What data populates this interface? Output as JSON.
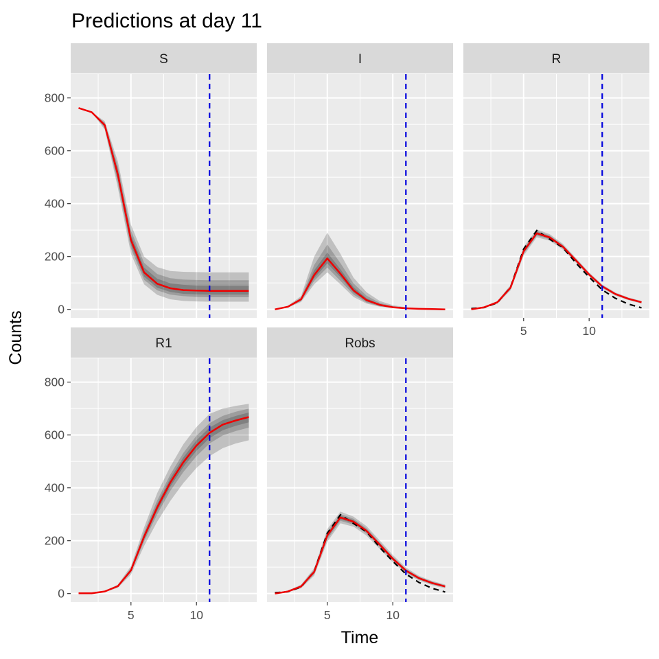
{
  "chart_data": {
    "type": "line",
    "title": "Predictions at day 11",
    "xlabel": "Time",
    "ylabel": "Counts",
    "xlim": [
      0.4,
      14.6
    ],
    "ylim": [
      -32,
      890
    ],
    "x_ticks": [
      5,
      10
    ],
    "y_ticks": [
      0,
      200,
      400,
      600,
      800
    ],
    "vline_x": 11,
    "colors": {
      "panel_bg": "#ebebeb",
      "strip_bg": "#d9d9d9",
      "grid": "#ffffff",
      "median": "#ee0000",
      "observed": "#000000",
      "vline": "#0000dd",
      "band": "#000000"
    },
    "x": [
      1,
      2,
      3,
      4,
      5,
      6,
      7,
      8,
      9,
      10,
      11,
      12,
      13,
      14
    ],
    "panels": [
      {
        "name": "S",
        "median": [
          762,
          746,
          697,
          510,
          262,
          140,
          97,
          80,
          73,
          71,
          70,
          70,
          70,
          70
        ],
        "bands": [
          {
            "lower": [
              762,
              746,
              680,
              460,
              210,
              95,
              55,
              38,
              32,
              30,
              29,
              29,
              29,
              29
            ],
            "upper": [
              762,
              746,
              712,
              560,
              320,
              200,
              160,
              145,
              142,
              141,
              140,
              140,
              140,
              140
            ]
          },
          {
            "lower": [
              762,
              746,
              687,
              478,
              230,
              112,
              72,
              56,
              50,
              47,
              46,
              46,
              46,
              46
            ],
            "upper": [
              762,
              746,
              706,
              542,
              298,
              176,
              134,
              118,
              113,
              111,
              110,
              110,
              110,
              110
            ]
          },
          {
            "lower": [
              762,
              746,
              691,
              492,
              244,
              124,
              82,
              66,
              59,
              57,
              56,
              56,
              56,
              56
            ],
            "upper": [
              762,
              746,
              702,
              528,
              282,
              158,
              116,
              99,
              93,
              90,
              89,
              89,
              89,
              89
            ]
          }
        ],
        "observed": null
      },
      {
        "name": "I",
        "median": [
          0,
          10,
          38,
          130,
          193,
          135,
          72,
          35,
          17,
          8,
          4,
          2,
          1,
          0
        ],
        "bands": [
          {
            "lower": [
              0,
              7,
              28,
              95,
              140,
              95,
              47,
              22,
              10,
              5,
              2,
              1,
              0,
              0
            ],
            "upper": [
              0,
              14,
              50,
              200,
              290,
              210,
              120,
              65,
              32,
              16,
              8,
              4,
              2,
              1
            ]
          },
          {
            "lower": [
              0,
              8,
              32,
              108,
              158,
              108,
              56,
              26,
              12,
              6,
              3,
              1,
              0,
              0
            ],
            "upper": [
              0,
              12,
              44,
              168,
              245,
              175,
              98,
              52,
              25,
              12,
              6,
              3,
              1,
              1
            ]
          },
          {
            "lower": [
              0,
              9,
              35,
              118,
              174,
              122,
              64,
              30,
              14,
              7,
              3,
              2,
              1,
              0
            ],
            "upper": [
              0,
              11,
              41,
              148,
              215,
              152,
              84,
              42,
              20,
              10,
              5,
              2,
              1,
              0
            ]
          }
        ],
        "observed": null
      },
      {
        "name": "R",
        "median": [
          0,
          8,
          27,
          82,
          220,
          288,
          272,
          237,
          185,
          132,
          87,
          58,
          40,
          27
        ],
        "bands": [
          {
            "lower": [
              0,
              6,
              22,
              72,
              203,
              273,
              260,
              226,
              176,
              124,
              80,
              52,
              35,
              22
            ],
            "upper": [
              0,
              10,
              32,
              92,
              237,
              303,
              284,
              248,
              194,
              140,
              94,
              64,
              45,
              32
            ]
          },
          {
            "lower": [
              0,
              7,
              24,
              76,
              210,
              279,
              265,
              231,
              180,
              128,
              83,
              55,
              37,
              24
            ],
            "upper": [
              0,
              9,
              30,
              88,
              230,
              297,
              279,
              243,
              190,
              136,
              91,
              61,
              43,
              30
            ]
          },
          {
            "lower": [
              0,
              7,
              25,
              79,
              215,
              283,
              268,
              234,
              182,
              130,
              85,
              56,
              38,
              25
            ],
            "upper": [
              0,
              9,
              29,
              85,
              225,
              293,
              276,
              240,
              188,
              134,
              89,
              60,
              42,
              29
            ]
          }
        ],
        "observed": [
          3,
          7,
          25,
          84,
          228,
          298,
          265,
          234,
          175,
          122,
          74,
          42,
          20,
          6
        ]
      },
      {
        "name": "R1",
        "median": [
          1,
          1,
          8,
          28,
          88,
          215,
          326,
          420,
          497,
          560,
          608,
          639,
          655,
          668
        ],
        "bands": [
          {
            "lower": [
              1,
              1,
              6,
              22,
              72,
              180,
              272,
              350,
              418,
              475,
              520,
              550,
              568,
              580
            ],
            "upper": [
              1,
              1,
              10,
              34,
              104,
              250,
              380,
              480,
              565,
              630,
              680,
              700,
              710,
              718
            ]
          },
          {
            "lower": [
              1,
              1,
              7,
              25,
              80,
              197,
              300,
              388,
              460,
              520,
              568,
              598,
              615,
              628
            ],
            "upper": [
              1,
              1,
              9,
              31,
              96,
              233,
              352,
              450,
              532,
              597,
              645,
              672,
              688,
              700
            ]
          },
          {
            "lower": [
              1,
              1,
              7,
              26,
              84,
              206,
              313,
              404,
              479,
              540,
              588,
              618,
              635,
              648
            ],
            "upper": [
              1,
              1,
              9,
              30,
              92,
              224,
              339,
              436,
              515,
              580,
              628,
              656,
              672,
              685
            ]
          }
        ],
        "observed": null
      },
      {
        "name": "Robs",
        "median": [
          0,
          8,
          27,
          82,
          220,
          288,
          272,
          237,
          185,
          132,
          87,
          58,
          40,
          27
        ],
        "bands": [
          {
            "lower": [
              0,
              5,
              20,
              68,
              196,
              266,
              253,
              219,
              169,
              118,
              76,
              49,
              32,
              20
            ],
            "upper": [
              0,
              11,
              34,
              96,
              244,
              310,
              291,
              255,
              201,
              146,
              98,
              67,
              48,
              34
            ]
          },
          {
            "lower": [
              0,
              6,
              23,
              74,
              206,
              275,
              261,
              227,
              176,
              125,
              81,
              53,
              35,
              23
            ],
            "upper": [
              0,
              10,
              31,
              90,
              234,
              301,
              283,
              247,
              194,
              139,
              93,
              63,
              45,
              31
            ]
          },
          {
            "lower": [
              0,
              7,
              25,
              78,
              213,
              281,
              266,
              232,
              181,
              129,
              84,
              56,
              38,
              25
            ],
            "upper": [
              0,
              9,
              29,
              86,
              227,
              295,
              278,
              242,
              189,
              135,
              90,
              60,
              42,
              29
            ]
          }
        ],
        "observed": [
          3,
          7,
          25,
          84,
          228,
          298,
          265,
          234,
          175,
          122,
          74,
          42,
          20,
          6
        ]
      }
    ]
  }
}
